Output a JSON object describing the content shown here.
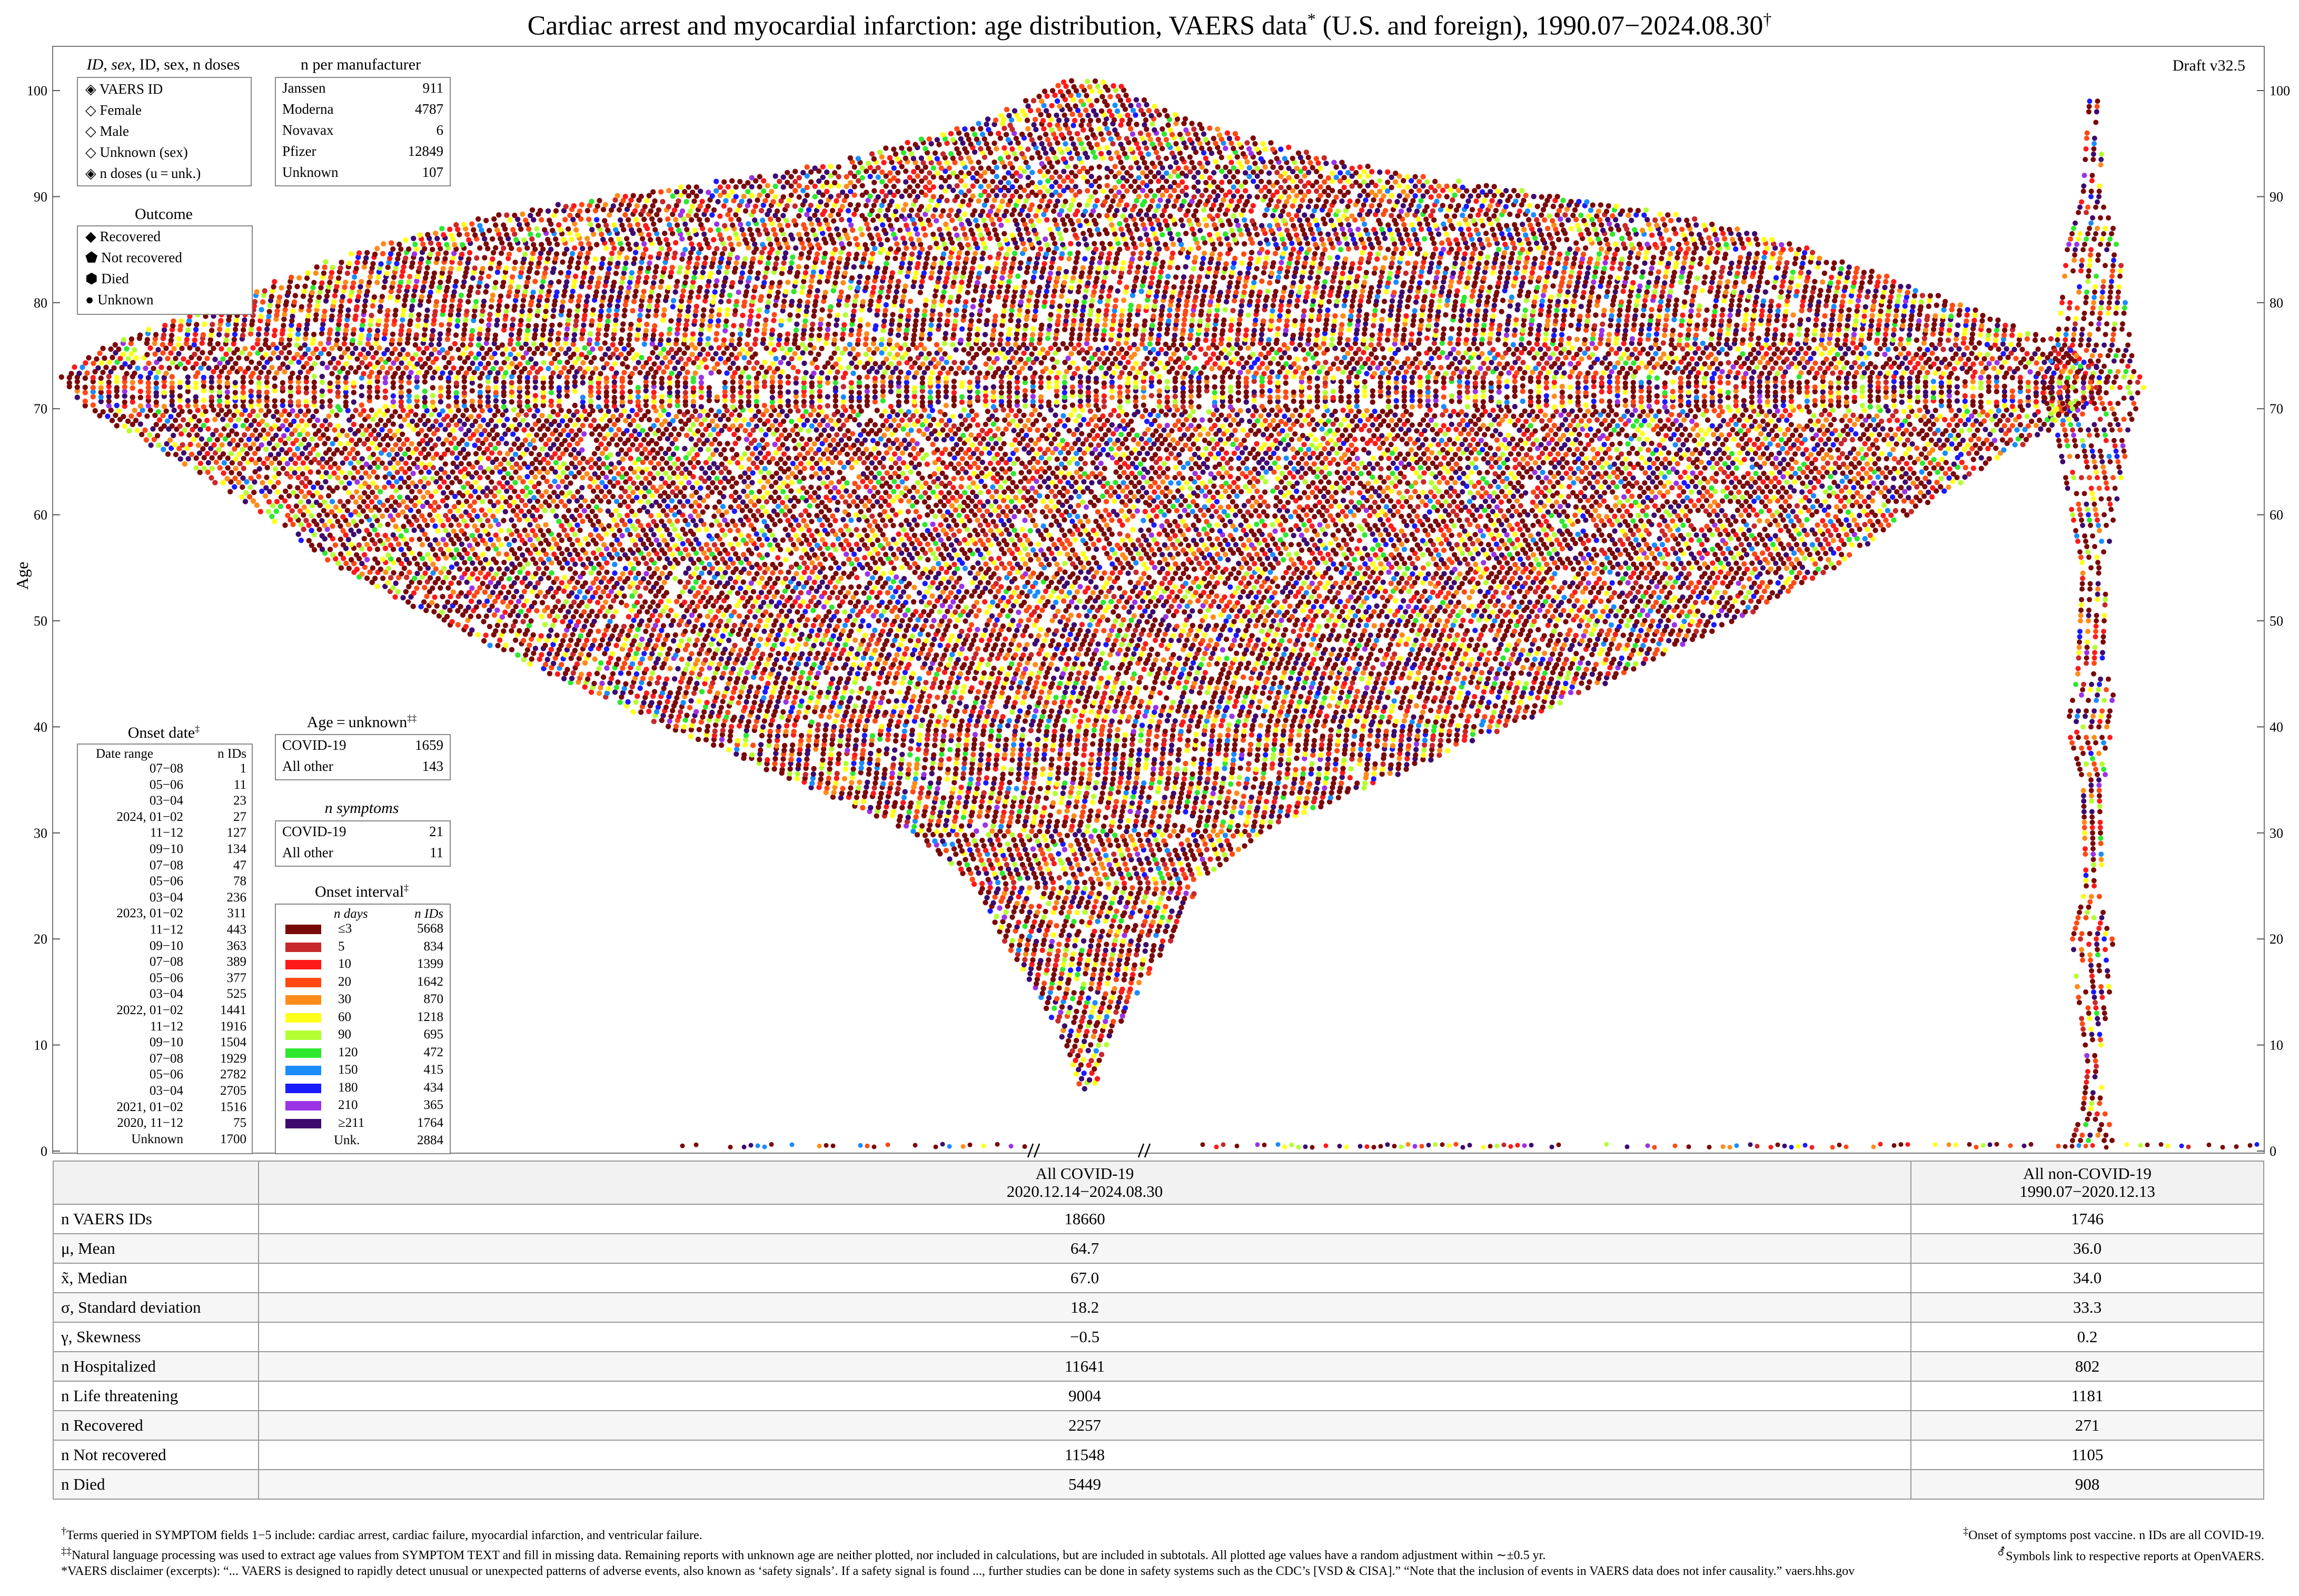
{
  "title": "Cardiac arrest and myocardial infarction: age distribution, VAERS data",
  "title_suffix": " (U.S. and foreign), 1990.07−2024.08.30",
  "draft": "Draft v32.5",
  "ylabel": "Age",
  "legends": {
    "id_sex": {
      "heading": "ID, sex, n doses",
      "items": [
        "VAERS ID",
        "Female",
        "Male",
        "Unknown (sex)",
        "n doses (u = unk.)"
      ]
    },
    "manufacturer": {
      "heading": "n per manufacturer",
      "rows": [
        {
          "name": "Janssen",
          "n": "911"
        },
        {
          "name": "Moderna",
          "n": "4787"
        },
        {
          "name": "Novavax",
          "n": "6"
        },
        {
          "name": "Pfizer",
          "n": "12849"
        },
        {
          "name": "Unknown",
          "n": "107"
        }
      ]
    },
    "outcome": {
      "heading": "Outcome",
      "items": [
        "Recovered",
        "Not recovered",
        "Died",
        "Unknown"
      ]
    },
    "onset_date": {
      "heading": "Onset date",
      "col1": "Date range",
      "col2": "n IDs",
      "rows": [
        {
          "range": "07−08",
          "n": "1"
        },
        {
          "range": "05−06",
          "n": "11"
        },
        {
          "range": "03−04",
          "n": "23"
        },
        {
          "range": "2024, 01−02",
          "n": "27"
        },
        {
          "range": "11−12",
          "n": "127"
        },
        {
          "range": "09−10",
          "n": "134"
        },
        {
          "range": "07−08",
          "n": "47"
        },
        {
          "range": "05−06",
          "n": "78"
        },
        {
          "range": "03−04",
          "n": "236"
        },
        {
          "range": "2023, 01−02",
          "n": "311"
        },
        {
          "range": "11−12",
          "n": "443"
        },
        {
          "range": "09−10",
          "n": "363"
        },
        {
          "range": "07−08",
          "n": "389"
        },
        {
          "range": "05−06",
          "n": "377"
        },
        {
          "range": "03−04",
          "n": "525"
        },
        {
          "range": "2022, 01−02",
          "n": "1441"
        },
        {
          "range": "11−12",
          "n": "1916"
        },
        {
          "range": "09−10",
          "n": "1504"
        },
        {
          "range": "07−08",
          "n": "1929"
        },
        {
          "range": "05−06",
          "n": "2782"
        },
        {
          "range": "03−04",
          "n": "2705"
        },
        {
          "range": "2021, 01−02",
          "n": "1516"
        },
        {
          "range": "2020, 11−12",
          "n": "75"
        },
        {
          "range": "Unknown",
          "n": "1700"
        }
      ]
    },
    "age_unknown": {
      "heading": "Age = unknown",
      "rows": [
        {
          "name": "COVID-19",
          "n": "1659"
        },
        {
          "name": "All other",
          "n": "143"
        }
      ]
    },
    "n_symptoms": {
      "heading": "n symptoms",
      "rows": [
        {
          "name": "COVID-19",
          "n": "21"
        },
        {
          "name": "All other",
          "n": "11"
        }
      ]
    },
    "onset_interval": {
      "heading": "Onset interval",
      "col1": "n days",
      "col2": "n IDs",
      "rows": [
        {
          "days": "≤3",
          "n": "5668",
          "color": "#7a0a0a"
        },
        {
          "days": "5",
          "n": "834",
          "color": "#c8282b"
        },
        {
          "days": "10",
          "n": "1399",
          "color": "#ff1a1a"
        },
        {
          "days": "20",
          "n": "1642",
          "color": "#ff4a14"
        },
        {
          "days": "30",
          "n": "870",
          "color": "#ff8c1a"
        },
        {
          "days": "60",
          "n": "1218",
          "color": "#ffff1a"
        },
        {
          "days": "90",
          "n": "695",
          "color": "#b3ff33"
        },
        {
          "days": "120",
          "n": "472",
          "color": "#2ee82e"
        },
        {
          "days": "150",
          "n": "415",
          "color": "#1a8cff"
        },
        {
          "days": "180",
          "n": "434",
          "color": "#1a1aff"
        },
        {
          "days": "210",
          "n": "365",
          "color": "#9b33e6"
        },
        {
          "days": "≥211",
          "n": "1764",
          "color": "#3d0a6e"
        },
        {
          "days": "Unk.",
          "n": "2884",
          "color": ""
        }
      ]
    }
  },
  "chart_data": {
    "type": "scatter",
    "description_kind": "beeswarm age distribution",
    "ylabel": "Age",
    "ylim": [
      0,
      103
    ],
    "yticks": [
      0,
      10,
      20,
      30,
      40,
      50,
      60,
      70,
      80,
      90,
      100
    ],
    "groups": [
      {
        "name": "All COVID-19",
        "n": 18660
      },
      {
        "name": "All non-COVID-19",
        "n": 1746
      }
    ],
    "grid": false
  },
  "table": {
    "headers": [
      {
        "line1": "All COVID-19",
        "line2": "2020.12.14−2024.08.30"
      },
      {
        "line1": "All non-COVID-19",
        "line2": "1990.07−2020.12.13"
      }
    ],
    "rows": [
      {
        "label": "n VAERS IDs",
        "covid": "18660",
        "other": "1746"
      },
      {
        "label": "μ, Mean",
        "covid": "64.7",
        "other": "36.0"
      },
      {
        "label": "x̃, Median",
        "covid": "67.0",
        "other": "34.0"
      },
      {
        "label": "σ, Standard deviation",
        "covid": "18.2",
        "other": "33.3"
      },
      {
        "label": "γ, Skewness",
        "covid": "−0.5",
        "other": "0.2"
      },
      {
        "label": "n Hospitalized",
        "covid": "11641",
        "other": "802"
      },
      {
        "label": "n Life threatening",
        "covid": "9004",
        "other": "1181"
      },
      {
        "label": "n Recovered",
        "covid": "2257",
        "other": "271"
      },
      {
        "label": "n Not recovered",
        "covid": "11548",
        "other": "1105"
      },
      {
        "label": "n Died",
        "covid": "5449",
        "other": "908"
      }
    ]
  },
  "footnotes": {
    "f1": "Terms queried in SYMPTOM fields 1−5 include: cardiac arrest, cardiac failure, myocardial infarction, and ventricular failure.",
    "f1r": "Onset of symptoms post vaccine. n IDs are all COVID-19.",
    "f2": "Natural language processing was used to extract age values from SYMPTOM TEXT and fill in missing data. Remaining reports with unknown age are neither plotted, nor included in calculations, but are included in subtotals. All plotted age values have a random adjustment within ∼±0.5 yr.",
    "f2r": "Symbols link to respective reports at OpenVAERS.",
    "f3": "*VAERS disclaimer (excerpts): “... VAERS is designed to rapidly detect unusual or unexpected patterns of adverse events, also known as ‘safety signals’. If a safety signal is found ..., further studies can be done in safety systems such as the CDC’s [VSD & CISA].” “Note that the inclusion of events in VAERS data does not infer causality.”  vaers.hhs.gov"
  }
}
